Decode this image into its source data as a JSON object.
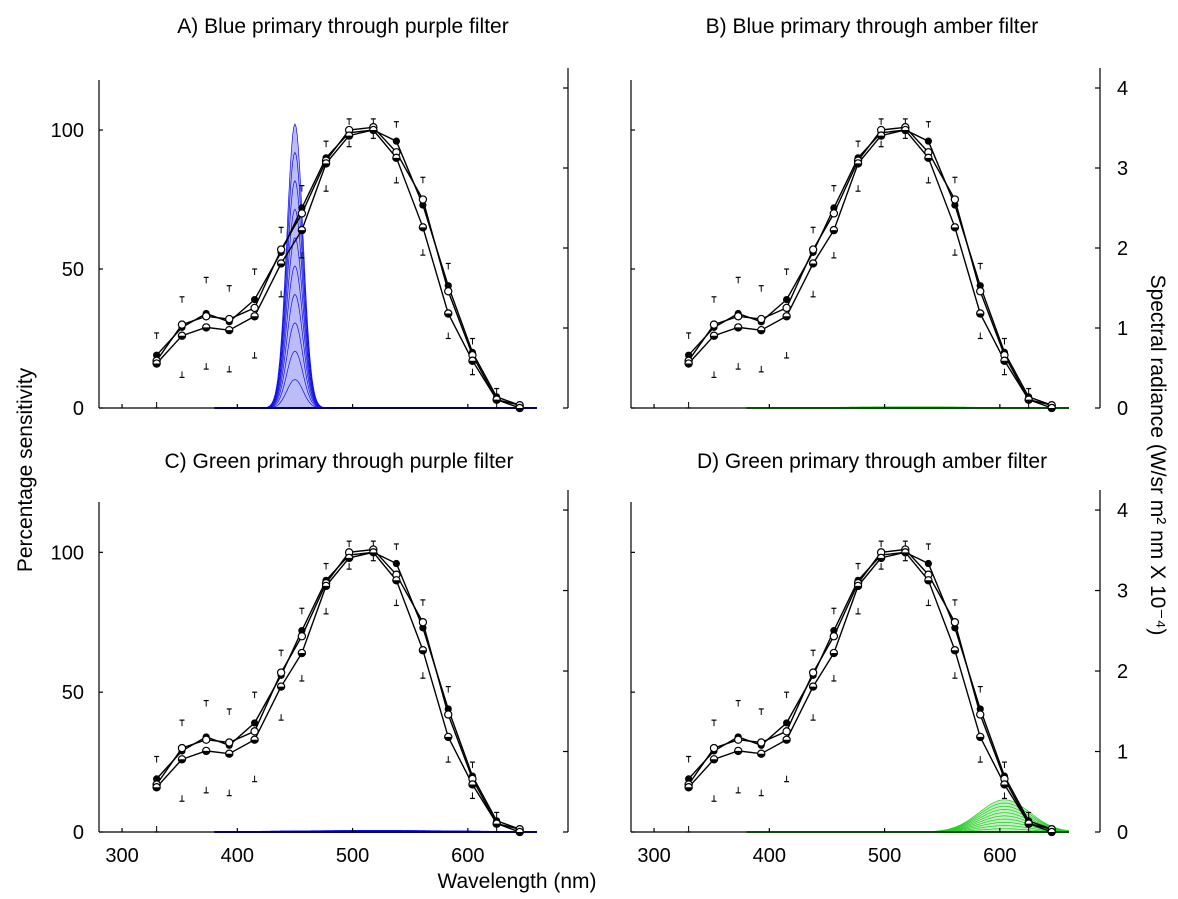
{
  "figure": {
    "left_axis_label": "Percentage sensitivity",
    "right_axis_label": "Spectral radiance (W/sr m² nm X 10⁻⁴)",
    "x_axis_label": "Wavelength (nm)"
  },
  "colors": {
    "blue_primary": "#1010e6",
    "green_primary": "#22cc22",
    "series": "#000000"
  },
  "chart_data": [
    {
      "id": "A",
      "type": "line",
      "title": "A) Blue primary through purple filter",
      "xlim": [
        280,
        660
      ],
      "ylim": [
        0,
        118
      ],
      "y2lim": [
        0,
        4.1
      ],
      "xticks": [
        300,
        400,
        500,
        600
      ],
      "xtick_labels": [],
      "yticks": [
        0,
        50,
        100
      ],
      "ytick_labels": [
        "0",
        "50",
        "100"
      ],
      "y2ticks": [
        0,
        1,
        2,
        3,
        4
      ],
      "y2tick_labels": [],
      "x": [
        330,
        352,
        373,
        393,
        415,
        438,
        456,
        477,
        497,
        518,
        538,
        561,
        583,
        604,
        625,
        645
      ],
      "series": [
        {
          "marker": "filled",
          "values": [
            19,
            29,
            34,
            31,
            39,
            56,
            72,
            90,
            99,
            100,
            96,
            73,
            44,
            20,
            4,
            1
          ]
        },
        {
          "marker": "open",
          "values": [
            17,
            30,
            33,
            32,
            36,
            57,
            70,
            89,
            100,
            101,
            92,
            75,
            42,
            19,
            3,
            1
          ]
        },
        {
          "marker": "half",
          "values": [
            16,
            26,
            29,
            28,
            33,
            52,
            64,
            88,
            98,
            100,
            90,
            65,
            34,
            17,
            3,
            0
          ]
        }
      ],
      "error_up": [
        8,
        10,
        13,
        12,
        11,
        8,
        8,
        6,
        4,
        3,
        7,
        8,
        8,
        5,
        3,
        1
      ],
      "error_down": [
        16,
        15,
        15,
        15,
        15,
        12,
        10,
        10,
        4,
        3,
        9,
        10,
        9,
        5,
        3,
        1
      ],
      "spectrum": {
        "color": "blue",
        "peak_nm": 450,
        "width_nm": 7,
        "peak_radiance": 3.55
      }
    },
    {
      "id": "B",
      "type": "line",
      "title": "B) Blue primary through amber filter",
      "xlim": [
        280,
        660
      ],
      "ylim": [
        0,
        118
      ],
      "y2lim": [
        0,
        4.1
      ],
      "xticks": [
        300,
        400,
        500,
        600
      ],
      "xtick_labels": [],
      "yticks": [
        0,
        50,
        100
      ],
      "ytick_labels": [],
      "y2ticks": [
        0,
        1,
        2,
        3,
        4
      ],
      "y2tick_labels": [
        "0",
        "1",
        "2",
        "3",
        "4"
      ],
      "x": [
        330,
        352,
        373,
        393,
        415,
        438,
        456,
        477,
        497,
        518,
        538,
        561,
        583,
        604,
        625,
        645
      ],
      "series": [
        {
          "marker": "filled",
          "values": [
            19,
            29,
            34,
            31,
            39,
            56,
            72,
            90,
            99,
            100,
            96,
            73,
            44,
            20,
            4,
            1
          ]
        },
        {
          "marker": "open",
          "values": [
            17,
            30,
            33,
            32,
            36,
            57,
            70,
            89,
            100,
            101,
            92,
            75,
            42,
            19,
            3,
            1
          ]
        },
        {
          "marker": "half",
          "values": [
            16,
            26,
            29,
            28,
            33,
            52,
            64,
            88,
            98,
            100,
            90,
            65,
            34,
            17,
            3,
            0
          ]
        }
      ],
      "error_up": [
        8,
        10,
        13,
        12,
        11,
        8,
        8,
        6,
        4,
        3,
        7,
        8,
        8,
        5,
        3,
        1
      ],
      "error_down": [
        16,
        15,
        15,
        15,
        15,
        12,
        10,
        10,
        4,
        3,
        9,
        10,
        9,
        5,
        3,
        1
      ],
      "spectrum": {
        "color": "green",
        "peak_nm": 520,
        "width_nm": 60,
        "peak_radiance": 0.015
      }
    },
    {
      "id": "C",
      "type": "line",
      "title": "C) Green primary through purple filter",
      "xlim": [
        280,
        660
      ],
      "ylim": [
        0,
        118
      ],
      "y2lim": [
        0,
        4.1
      ],
      "xticks": [
        300,
        400,
        500,
        600
      ],
      "xtick_labels": [
        "300",
        "400",
        "500",
        "600"
      ],
      "yticks": [
        0,
        50,
        100
      ],
      "ytick_labels": [
        "0",
        "50",
        "100"
      ],
      "y2ticks": [
        0,
        1,
        2,
        3,
        4
      ],
      "y2tick_labels": [],
      "x": [
        330,
        352,
        373,
        393,
        415,
        438,
        456,
        477,
        497,
        518,
        538,
        561,
        583,
        604,
        625,
        645
      ],
      "series": [
        {
          "marker": "filled",
          "values": [
            19,
            29,
            34,
            31,
            39,
            56,
            72,
            90,
            99,
            100,
            96,
            73,
            44,
            20,
            4,
            1
          ]
        },
        {
          "marker": "open",
          "values": [
            17,
            30,
            33,
            32,
            36,
            57,
            70,
            89,
            100,
            101,
            92,
            75,
            42,
            19,
            3,
            1
          ]
        },
        {
          "marker": "half",
          "values": [
            16,
            26,
            29,
            28,
            33,
            52,
            64,
            88,
            98,
            100,
            90,
            65,
            34,
            17,
            3,
            0
          ]
        }
      ],
      "error_up": [
        8,
        10,
        13,
        12,
        11,
        8,
        8,
        6,
        4,
        3,
        7,
        8,
        8,
        5,
        3,
        1
      ],
      "error_down": [
        16,
        15,
        15,
        15,
        15,
        12,
        10,
        10,
        4,
        3,
        9,
        10,
        9,
        5,
        3,
        1
      ],
      "spectrum": {
        "color": "blue",
        "peak_nm": 520,
        "width_nm": 80,
        "peak_radiance": 0.02
      }
    },
    {
      "id": "D",
      "type": "line",
      "title": "D) Green primary through amber filter",
      "xlim": [
        280,
        660
      ],
      "ylim": [
        0,
        118
      ],
      "y2lim": [
        0,
        4.1
      ],
      "xticks": [
        300,
        400,
        500,
        600
      ],
      "xtick_labels": [
        "300",
        "400",
        "500",
        "600"
      ],
      "yticks": [
        0,
        50,
        100
      ],
      "ytick_labels": [],
      "y2ticks": [
        0,
        1,
        2,
        3,
        4
      ],
      "y2tick_labels": [
        "0",
        "1",
        "2",
        "3",
        "4"
      ],
      "x": [
        330,
        352,
        373,
        393,
        415,
        438,
        456,
        477,
        497,
        518,
        538,
        561,
        583,
        604,
        625,
        645
      ],
      "series": [
        {
          "marker": "filled",
          "values": [
            19,
            29,
            34,
            31,
            39,
            56,
            72,
            90,
            99,
            100,
            96,
            73,
            44,
            20,
            4,
            1
          ]
        },
        {
          "marker": "open",
          "values": [
            17,
            30,
            33,
            32,
            36,
            57,
            70,
            89,
            100,
            101,
            92,
            75,
            42,
            19,
            3,
            1
          ]
        },
        {
          "marker": "half",
          "values": [
            16,
            26,
            29,
            28,
            33,
            52,
            64,
            88,
            98,
            100,
            90,
            65,
            34,
            17,
            3,
            0
          ]
        }
      ],
      "error_up": [
        8,
        10,
        13,
        12,
        11,
        8,
        8,
        6,
        4,
        3,
        7,
        8,
        8,
        5,
        3,
        1
      ],
      "error_down": [
        16,
        15,
        15,
        15,
        15,
        12,
        10,
        10,
        4,
        3,
        9,
        10,
        9,
        5,
        3,
        1
      ],
      "spectrum": {
        "color": "green",
        "peak_nm": 604,
        "width_nm": 22,
        "peak_radiance": 0.4
      }
    }
  ]
}
